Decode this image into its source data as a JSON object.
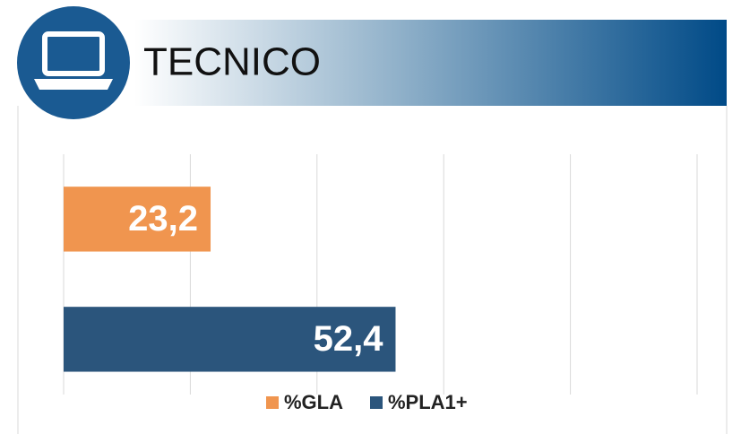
{
  "chart_data": {
    "type": "bar",
    "orientation": "horizontal",
    "title": "TECNICO",
    "categories": [
      null
    ],
    "series": [
      {
        "name": "%GLA",
        "color": "#f0954f",
        "values": [
          23.2
        ],
        "value_labels": [
          "23,2"
        ]
      },
      {
        "name": "%PLA1+",
        "color": "#2b557c",
        "values": [
          52.4
        ],
        "value_labels": [
          "52,4"
        ]
      }
    ],
    "xlim": [
      0,
      100
    ],
    "xticks": [
      0,
      20,
      40,
      60,
      80,
      100
    ],
    "grid": true,
    "legend": "bottom"
  }
}
